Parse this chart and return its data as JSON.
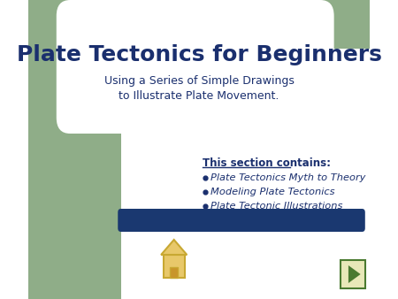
{
  "bg_color": "#ffffff",
  "green_color": "#8fad88",
  "dark_blue": "#1a2f6e",
  "navy_bar": "#1a3870",
  "title_text": "Plate Tectonics for Beginners",
  "subtitle_text": "Using a Series of Simple Drawings\nto Illustrate Plate Movement.",
  "section_header": "This section contains:",
  "bullets": [
    "Plate Tectonics Myth to Theory",
    "Modeling Plate Tectonics",
    "Plate Tectonic Illustrations"
  ],
  "bullet_color": "#1a2f6e",
  "italic_bullet_color": "#1a2f6e"
}
